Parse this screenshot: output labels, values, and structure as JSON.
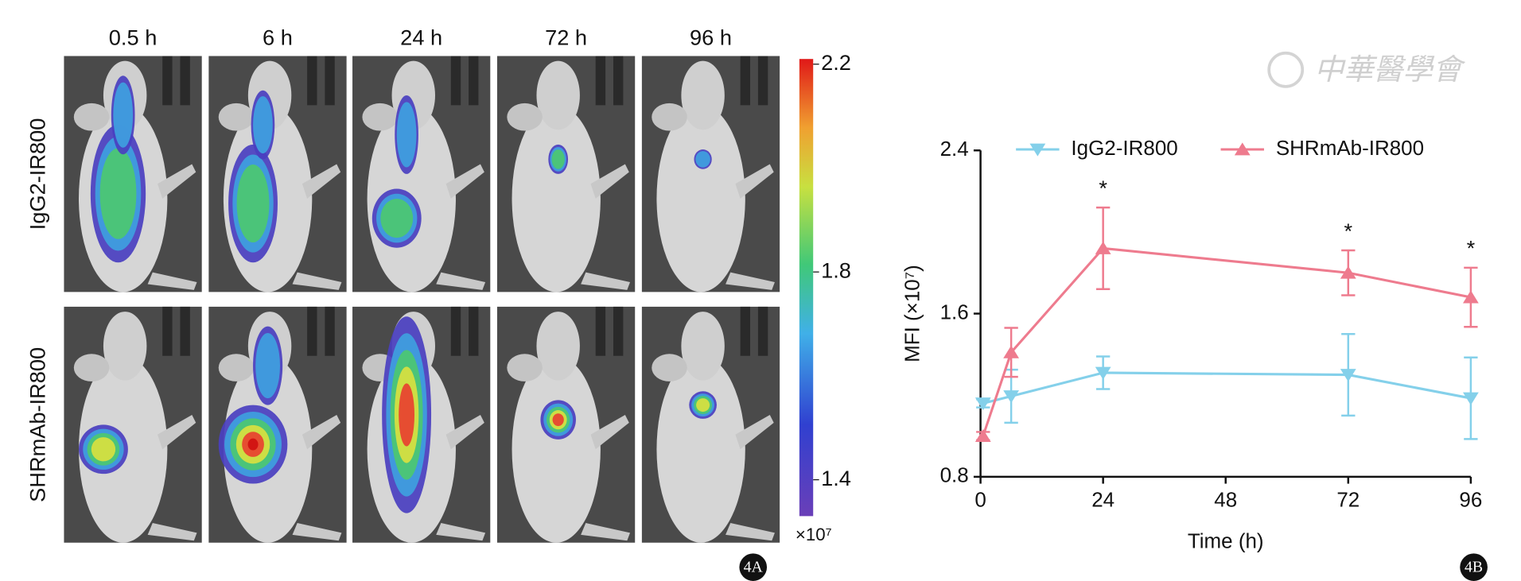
{
  "watermark": "中華醫學會",
  "chart_data": [
    {
      "type": "image-grid",
      "columns": [
        "0.5 h",
        "6 h",
        "24 h",
        "72 h",
        "96 h"
      ],
      "rows": [
        "IgG2-IR800",
        "SHRmAb-IR800"
      ],
      "colorbar": {
        "lim": [
          1.33,
          2.21
        ],
        "ticks": [
          2.2,
          1.8,
          1.4
        ],
        "unit": "×10⁷"
      },
      "panel_label": "4A"
    },
    {
      "type": "line",
      "x": [
        0.5,
        6,
        24,
        72,
        96
      ],
      "xlim": [
        0,
        96
      ],
      "xticks": [
        0,
        24,
        48,
        72,
        96
      ],
      "ylim": [
        0.8,
        2.4
      ],
      "yticks": [
        0.8,
        1.6,
        2.4
      ],
      "x_label": "Time (h)",
      "y_label": "MFI (×10⁷)",
      "legend": "top",
      "series": [
        {
          "name": "IgG2-IR800",
          "color": "#84d0ea",
          "marker": "triangle-down",
          "values": [
            1.16,
            1.195,
            1.31,
            1.3,
            1.185
          ],
          "errors": [
            0.02,
            0.13,
            0.08,
            0.2,
            0.2
          ]
        },
        {
          "name": "SHRmAb-IR800",
          "color": "#ee7b8e",
          "marker": "triangle-up",
          "values": [
            1.0,
            1.41,
            1.92,
            1.8,
            1.68
          ],
          "errors": [
            0.02,
            0.12,
            0.2,
            0.11,
            0.145
          ]
        }
      ],
      "annotations": [
        {
          "text": "*",
          "x": 24
        },
        {
          "text": "*",
          "x": 72
        },
        {
          "text": "*",
          "x": 96
        }
      ],
      "panel_label": "4B"
    }
  ]
}
